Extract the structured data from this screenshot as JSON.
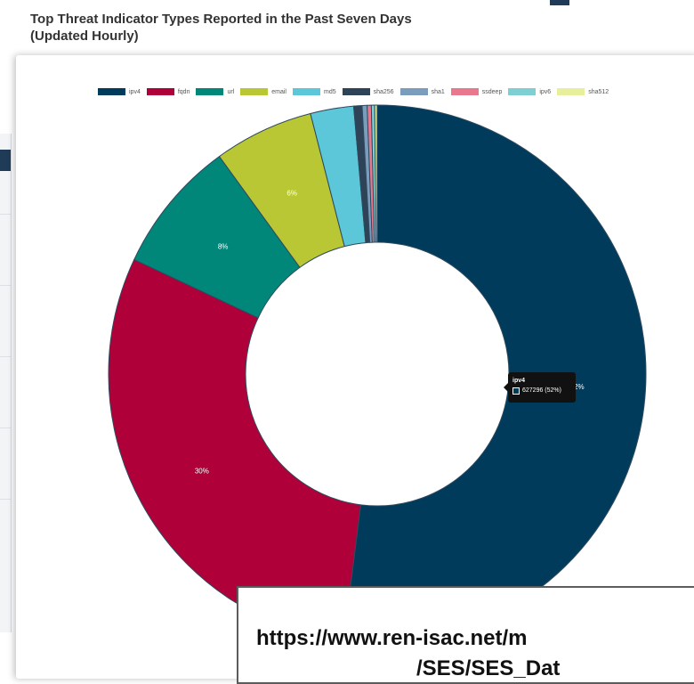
{
  "title_line1": "Top Threat Indicator Types Reported in the Past Seven Days",
  "title_line2": "(Updated Hourly)",
  "chart_data": {
    "type": "pie",
    "variant": "doughnut",
    "title": "Top Threat Indicator Types Reported in the Past Seven Days (Updated Hourly)",
    "legend_position": "top",
    "categories": [
      "ipv4",
      "fqdn",
      "url",
      "email",
      "md5",
      "sha256",
      "sha1",
      "ssdeep",
      "ipv6",
      "sha512"
    ],
    "values": [
      52,
      30,
      8,
      6,
      2.6,
      0.5,
      0.3,
      0.25,
      0.2,
      0.15
    ],
    "colors": [
      "#003b5c",
      "#b0003a",
      "#00877a",
      "#b8c733",
      "#5bc7d9",
      "#2e4357",
      "#7b9dbd",
      "#e9788f",
      "#7ecfd3",
      "#e7ef9c"
    ],
    "data_labels": [
      "52%",
      "30%",
      "8%",
      "6%",
      "",
      "",
      "",
      "",
      "",
      ""
    ],
    "tooltip": {
      "label": "ipv4",
      "value": "627296 (52%)"
    }
  },
  "url_line1": "https://www.ren-isac.net/m",
  "url_line2": "/SES/SES_Dat"
}
